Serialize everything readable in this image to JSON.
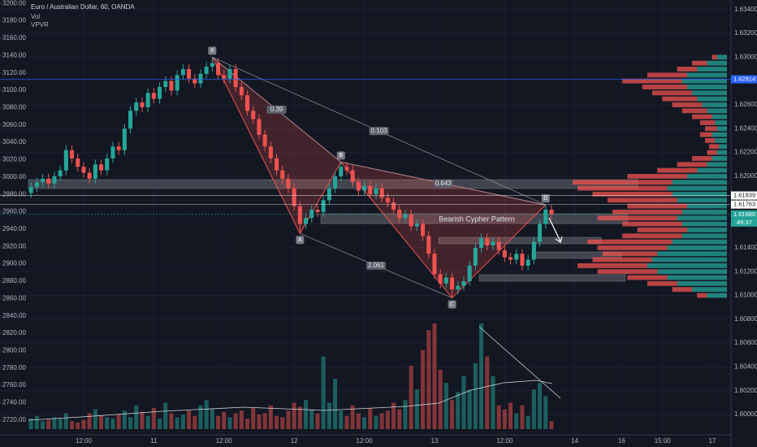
{
  "chart_data": {
    "type": "candlestick",
    "title": "Euro / Australian Dollar, 60, OANDA",
    "indicators": [
      "Vol",
      "VPVR"
    ],
    "colors": {
      "up": "#26a69a",
      "down": "#ef5350"
    },
    "open": [
      1.6186,
      1.6191,
      1.6195,
      1.6198,
      1.6194,
      1.62,
      1.6205,
      1.6222,
      1.6215,
      1.6208,
      1.6203,
      1.6198,
      1.621,
      1.6205,
      1.6215,
      1.6225,
      1.6222,
      1.624,
      1.6255,
      1.6262,
      1.6258,
      1.627,
      1.6265,
      1.6275,
      1.628,
      1.6272,
      1.6285,
      1.629,
      1.6282,
      1.6278,
      1.6286,
      1.6292,
      1.6295,
      1.6285,
      1.6282,
      1.629,
      1.6275,
      1.6268,
      1.6255,
      1.6248,
      1.6235,
      1.6225,
      1.6215,
      1.6205,
      1.6198,
      1.619,
      1.6175,
      1.616,
      1.6165,
      1.6172,
      1.617,
      1.618,
      1.619,
      1.62,
      1.6208,
      1.6205,
      1.6195,
      1.6188,
      1.6192,
      1.6185,
      1.619,
      1.6182,
      1.6178,
      1.6172,
      1.6165,
      1.6168,
      1.6158,
      1.616,
      1.615,
      1.6135,
      1.6118,
      1.611,
      1.6115,
      1.6105,
      1.6108,
      1.6112,
      1.6125,
      1.614,
      1.6148,
      1.6142,
      1.6145,
      1.6138,
      1.6132,
      1.613,
      1.6135,
      1.6125,
      1.613,
      1.6145,
      1.616,
      1.6172
    ],
    "high": [
      1.6195,
      1.6199,
      1.6202,
      1.6202,
      1.6204,
      1.6209,
      1.6226,
      1.6226,
      1.6219,
      1.6212,
      1.6207,
      1.6214,
      1.6214,
      1.6219,
      1.6229,
      1.6229,
      1.6244,
      1.6259,
      1.6266,
      1.6266,
      1.6274,
      1.6274,
      1.6279,
      1.6284,
      1.6284,
      1.6289,
      1.6294,
      1.6294,
      1.6286,
      1.629,
      1.6296,
      1.63,
      1.6299,
      1.6289,
      1.6294,
      1.6294,
      1.6279,
      1.6272,
      1.6259,
      1.6252,
      1.6239,
      1.6229,
      1.6219,
      1.6209,
      1.6202,
      1.6194,
      1.6179,
      1.6169,
      1.6176,
      1.6176,
      1.6184,
      1.6194,
      1.6204,
      1.6212,
      1.6212,
      1.6209,
      1.6199,
      1.6196,
      1.6196,
      1.6194,
      1.6194,
      1.6186,
      1.6182,
      1.6176,
      1.6172,
      1.6172,
      1.6164,
      1.6164,
      1.6154,
      1.6139,
      1.6122,
      1.6119,
      1.6119,
      1.6112,
      1.6116,
      1.6129,
      1.6144,
      1.6152,
      1.6152,
      1.6149,
      1.6149,
      1.6142,
      1.6136,
      1.6139,
      1.6139,
      1.6134,
      1.6149,
      1.6164,
      1.6176,
      1.6176
    ],
    "low": [
      1.6182,
      1.6187,
      1.6191,
      1.619,
      1.619,
      1.6196,
      1.6201,
      1.6211,
      1.6204,
      1.6199,
      1.6194,
      1.6194,
      1.6201,
      1.6201,
      1.6211,
      1.6218,
      1.6218,
      1.6236,
      1.6251,
      1.6254,
      1.6254,
      1.6261,
      1.6261,
      1.6271,
      1.6268,
      1.6268,
      1.6281,
      1.6278,
      1.6274,
      1.6274,
      1.6282,
      1.6288,
      1.6281,
      1.6278,
      1.6278,
      1.6271,
      1.6264,
      1.6251,
      1.6244,
      1.6231,
      1.6221,
      1.6211,
      1.6201,
      1.6194,
      1.6186,
      1.6171,
      1.6152,
      1.6156,
      1.6161,
      1.6166,
      1.6166,
      1.6176,
      1.6186,
      1.6196,
      1.6201,
      1.6191,
      1.6184,
      1.6184,
      1.6181,
      1.6181,
      1.6178,
      1.6174,
      1.6168,
      1.6161,
      1.6161,
      1.6154,
      1.6154,
      1.6146,
      1.6131,
      1.6114,
      1.6106,
      1.6106,
      1.6098,
      1.6101,
      1.6104,
      1.6108,
      1.6121,
      1.6136,
      1.6138,
      1.6138,
      1.6134,
      1.6128,
      1.6126,
      1.6126,
      1.6121,
      1.6121,
      1.6126,
      1.6141,
      1.6156,
      1.6164
    ],
    "close": [
      1.6191,
      1.6195,
      1.6198,
      1.6194,
      1.62,
      1.6205,
      1.6222,
      1.6215,
      1.6208,
      1.6203,
      1.6198,
      1.621,
      1.6205,
      1.6215,
      1.6225,
      1.6222,
      1.624,
      1.6255,
      1.6262,
      1.6258,
      1.627,
      1.6265,
      1.6275,
      1.628,
      1.6272,
      1.6285,
      1.629,
      1.6282,
      1.6278,
      1.6286,
      1.6292,
      1.6295,
      1.6285,
      1.6282,
      1.629,
      1.6275,
      1.6268,
      1.6255,
      1.6248,
      1.6235,
      1.6225,
      1.6215,
      1.6205,
      1.6198,
      1.619,
      1.6175,
      1.616,
      1.6165,
      1.6172,
      1.617,
      1.618,
      1.619,
      1.62,
      1.6208,
      1.6205,
      1.6195,
      1.6188,
      1.6192,
      1.6185,
      1.619,
      1.6182,
      1.6178,
      1.6172,
      1.6165,
      1.6168,
      1.6158,
      1.616,
      1.615,
      1.6135,
      1.6118,
      1.611,
      1.6115,
      1.6105,
      1.6108,
      1.6112,
      1.6125,
      1.614,
      1.6148,
      1.6142,
      1.6145,
      1.6138,
      1.6132,
      1.613,
      1.6135,
      1.6125,
      1.613,
      1.6145,
      1.616,
      1.6172,
      1.6168
    ],
    "volume": [
      8,
      10,
      6,
      7,
      9,
      8,
      12,
      6,
      5,
      7,
      12,
      15,
      10,
      9,
      8,
      11,
      14,
      9,
      18,
      13,
      10,
      16,
      8,
      20,
      12,
      9,
      11,
      14,
      10,
      18,
      22,
      15,
      10,
      13,
      9,
      12,
      14,
      8,
      16,
      11,
      12,
      18,
      10,
      9,
      14,
      20,
      17,
      22,
      15,
      12,
      55,
      20,
      38,
      14,
      10,
      18,
      12,
      9,
      16,
      10,
      12,
      14,
      20,
      15,
      22,
      48,
      30,
      60,
      75,
      80,
      45,
      35,
      22,
      28,
      40,
      30,
      50,
      80,
      55,
      40,
      18,
      15,
      20,
      12,
      18,
      10,
      30,
      35,
      25,
      6
    ],
    "vpvr": {
      "prices": [
        1.61,
        1.6105,
        1.611,
        1.6115,
        1.612,
        1.6125,
        1.613,
        1.6135,
        1.614,
        1.6145,
        1.615,
        1.6155,
        1.616,
        1.6165,
        1.617,
        1.6175,
        1.618,
        1.6185,
        1.619,
        1.6195,
        1.62,
        1.6205,
        1.621,
        1.6215,
        1.622,
        1.6225,
        1.623,
        1.6235,
        1.624,
        1.6245,
        1.625,
        1.6255,
        1.626,
        1.6265,
        1.627,
        1.6275,
        1.628,
        1.6285,
        1.629,
        1.6295,
        1.63
      ],
      "up": [
        20,
        35,
        50,
        60,
        70,
        80,
        75,
        70,
        60,
        55,
        45,
        40,
        45,
        50,
        45,
        40,
        50,
        55,
        60,
        55,
        40,
        30,
        20,
        15,
        10,
        8,
        12,
        15,
        10,
        12,
        15,
        20,
        25,
        30,
        35,
        40,
        45,
        40,
        30,
        20,
        10
      ],
      "down": [
        10,
        20,
        30,
        40,
        60,
        70,
        60,
        55,
        70,
        85,
        60,
        50,
        60,
        80,
        70,
        60,
        70,
        80,
        90,
        100,
        60,
        40,
        30,
        20,
        10,
        10,
        10,
        12,
        12,
        15,
        20,
        25,
        30,
        35,
        40,
        45,
        60,
        40,
        20,
        15,
        5
      ]
    },
    "pattern": {
      "name": "Bearish Cypher Pattern",
      "points": [
        {
          "label": "X",
          "x": 31,
          "price": 1.63
        },
        {
          "label": "A",
          "x": 46,
          "price": 1.6152
        },
        {
          "label": "B",
          "x": 53,
          "price": 1.6212
        },
        {
          "label": "C",
          "x": 72,
          "price": 1.6098
        },
        {
          "label": "D",
          "x": 88,
          "price": 1.6176
        }
      ],
      "ratios": [
        "0.39",
        "0.103",
        "0.643",
        "2.061"
      ]
    },
    "price_labels": [
      {
        "value": 1.62814,
        "label": "1.62814",
        "color": "#2962ff"
      },
      {
        "value": 1.61839,
        "label": "1.61839",
        "color": "#ffffff"
      },
      {
        "value": 1.61763,
        "label": "1.61763",
        "color": "#ffffff"
      },
      {
        "value": 1.6168,
        "label": "1.61680",
        "color": "#26a69a"
      }
    ],
    "countdown": "49:37",
    "xlim": [
      -5.3,
      119.7
    ],
    "xticks": [
      {
        "value": 9,
        "label": "12:00"
      },
      {
        "value": 21,
        "label": "11"
      },
      {
        "value": 33,
        "label": "12:00"
      },
      {
        "value": 45,
        "label": "12"
      },
      {
        "value": 57,
        "label": "12:00"
      },
      {
        "value": 69,
        "label": "13"
      },
      {
        "value": 81,
        "label": "12:00"
      },
      {
        "value": 93,
        "label": "14"
      },
      {
        "value": 101,
        "label": "16"
      },
      {
        "value": 108,
        "label": "15:00"
      },
      {
        "value": 116.5,
        "label": "17"
      }
    ],
    "ylim": [
      1.5983,
      1.6348
    ],
    "yticks": [
      {
        "value": 1.6,
        "label": "1.60000"
      },
      {
        "value": 1.602,
        "label": "1.60200"
      },
      {
        "value": 1.604,
        "label": "1.60400"
      },
      {
        "value": 1.606,
        "label": "1.60600"
      },
      {
        "value": 1.608,
        "label": "1.60800"
      },
      {
        "value": 1.61,
        "label": "1.61000"
      },
      {
        "value": 1.612,
        "label": "1.61200"
      },
      {
        "value": 1.614,
        "label": "1.61400"
      },
      {
        "value": 1.616,
        "label": "1.61600"
      },
      {
        "value": 1.618,
        "label": "1.61800"
      },
      {
        "value": 1.62,
        "label": "1.62000"
      },
      {
        "value": 1.622,
        "label": "1.62200"
      },
      {
        "value": 1.624,
        "label": "1.62400"
      },
      {
        "value": 1.626,
        "label": "1.62600"
      },
      {
        "value": 1.628,
        "label": "1.62800"
      },
      {
        "value": 1.63,
        "label": "1.63000"
      },
      {
        "value": 1.632,
        "label": "1.63200"
      },
      {
        "value": 1.634,
        "label": "1.63400"
      }
    ],
    "y2lim": [
      2703,
      3204
    ],
    "y2ticks": [
      {
        "value": 2720,
        "label": "2720.00"
      },
      {
        "value": 2740,
        "label": "2740.00"
      },
      {
        "value": 2760,
        "label": "2760.00"
      },
      {
        "value": 2780,
        "label": "2780.00"
      },
      {
        "value": 2800,
        "label": "2800.00"
      },
      {
        "value": 2820,
        "label": "2820.00"
      },
      {
        "value": 2840,
        "label": "2840.00"
      },
      {
        "value": 2860,
        "label": "2860.00"
      },
      {
        "value": 2880,
        "label": "2880.00"
      },
      {
        "value": 2900,
        "label": "2900.00"
      },
      {
        "value": 2920,
        "label": "2920.00"
      },
      {
        "value": 2940,
        "label": "2940.00"
      },
      {
        "value": 2960,
        "label": "2960.00"
      },
      {
        "value": 2980,
        "label": "2980.00"
      },
      {
        "value": 3000,
        "label": "3000.00"
      },
      {
        "value": 3020,
        "label": "3020.00"
      },
      {
        "value": 3040,
        "label": "3040.00"
      },
      {
        "value": 3060,
        "label": "3060.00"
      },
      {
        "value": 3080,
        "label": "3080.00"
      },
      {
        "value": 3100,
        "label": "3100.00"
      },
      {
        "value": 3120,
        "label": "3120.00"
      },
      {
        "value": 3140,
        "label": "3140.00"
      },
      {
        "value": 3160,
        "label": "3160.00"
      },
      {
        "value": 3180,
        "label": "3180.00"
      },
      {
        "value": 3200,
        "label": "3200.00"
      }
    ],
    "grid": true
  }
}
